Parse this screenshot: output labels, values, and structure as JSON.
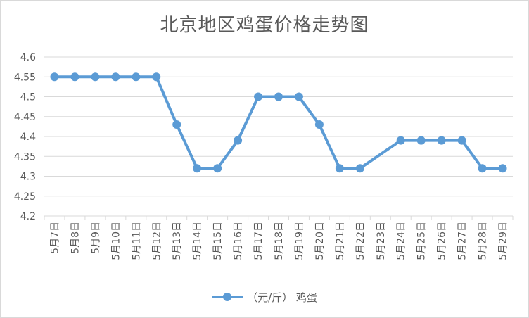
{
  "chart_data": {
    "type": "line",
    "title": "北京地区鸡蛋价格走势图",
    "categories": [
      "5月7日",
      "5月8日",
      "5月9日",
      "5月10日",
      "5月11日",
      "5月12日",
      "5月13日",
      "5月14日",
      "5月15日",
      "5月16日",
      "5月17日",
      "5月18日",
      "5月19日",
      "5月20日",
      "5月21日",
      "5月22日",
      "5月23日",
      "5月24日",
      "5月25日",
      "5月26日",
      "5月27日",
      "5月28日",
      "5月29日"
    ],
    "series": [
      {
        "name": "（元/斤） 鸡蛋",
        "values": [
          4.55,
          4.55,
          4.55,
          4.55,
          4.55,
          4.55,
          4.43,
          4.32,
          4.32,
          4.39,
          4.5,
          4.5,
          4.5,
          4.43,
          4.32,
          4.32,
          null,
          4.39,
          4.39,
          4.39,
          4.39,
          4.32,
          4.32
        ]
      }
    ],
    "ylim": [
      4.2,
      4.6
    ],
    "yticks": [
      "4.2",
      "4.25",
      "4.3",
      "4.35",
      "4.4",
      "4.45",
      "4.5",
      "4.55",
      "4.6"
    ],
    "grid": true,
    "legend": "bottom",
    "colors": {
      "series": "#5b9bd5",
      "grid": "#d9d9d9",
      "text": "#595959"
    }
  }
}
